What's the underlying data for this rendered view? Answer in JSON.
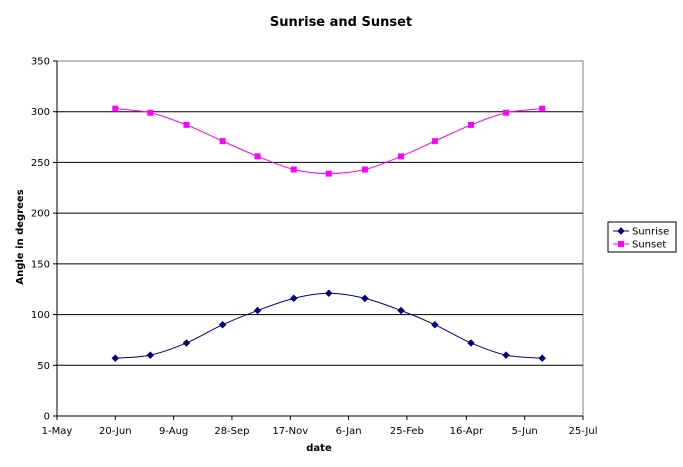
{
  "chart_data": {
    "type": "line",
    "title": "Sunrise and Sunset",
    "xlabel": "date",
    "ylabel": "Angle in degrees",
    "x_ticks": [
      "1-May",
      "20-Jun",
      "9-Aug",
      "28-Sep",
      "17-Nov",
      "6-Jan",
      "25-Feb",
      "16-Apr",
      "5-Jun",
      "25-Jul"
    ],
    "x_tick_dates": [
      "2003-05-01",
      "2003-06-20",
      "2003-08-09",
      "2003-09-28",
      "2003-11-17",
      "2004-01-06",
      "2004-02-25",
      "2004-04-16",
      "2004-06-05",
      "2004-07-25"
    ],
    "ylim": [
      0,
      350
    ],
    "y_ticks": [
      0,
      50,
      100,
      150,
      200,
      250,
      300,
      350
    ],
    "xlim": [
      "2003-05-01",
      "2004-07-25"
    ],
    "grid": "horizontal",
    "legend_position": "right",
    "x": [
      "2003-06-20",
      "2003-07-20",
      "2003-08-20",
      "2003-09-20",
      "2003-10-20",
      "2003-11-20",
      "2003-12-20",
      "2004-01-20",
      "2004-02-20",
      "2004-03-20",
      "2004-04-20",
      "2004-05-20",
      "2004-06-20"
    ],
    "series": [
      {
        "name": "Sunrise",
        "color": "#000080",
        "marker": "diamond",
        "values": [
          57,
          60,
          72,
          90,
          104,
          116,
          121,
          116,
          104,
          90,
          72,
          60,
          57
        ]
      },
      {
        "name": "Sunset",
        "color": "#ff00ff",
        "marker": "square",
        "values": [
          303,
          299,
          287,
          271,
          256,
          243,
          239,
          243,
          256,
          271,
          287,
          299,
          303
        ]
      }
    ]
  }
}
